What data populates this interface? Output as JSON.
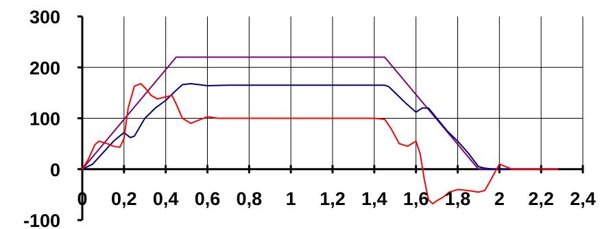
{
  "chart_data": {
    "type": "line",
    "title": "",
    "xlabel": "",
    "ylabel": "",
    "xlim": [
      0,
      2.4
    ],
    "ylim": [
      -100,
      300
    ],
    "grid": true,
    "legend": "none",
    "x_ticks": [
      0,
      0.2,
      0.4,
      0.6,
      0.8,
      1,
      1.2,
      1.4,
      1.6,
      1.8,
      2,
      2.2,
      2.4
    ],
    "x_tick_labels": [
      "0",
      "0,2",
      "0,4",
      "0,6",
      "0,8",
      "1",
      "1,2",
      "1,4",
      "1,6",
      "1,8",
      "2",
      "2,2",
      "2,4"
    ],
    "y_ticks": [
      -100,
      0,
      100,
      200,
      300
    ],
    "y_tick_labels": [
      "-100",
      "0",
      "100",
      "200",
      "300"
    ],
    "series": [
      {
        "color": "#800080",
        "x": [
          0,
          0.45,
          1.45,
          1.9,
          2.28
        ],
        "y": [
          0,
          220,
          220,
          0,
          0
        ]
      },
      {
        "color": "#000080",
        "x": [
          0,
          0.05,
          0.15,
          0.2,
          0.23,
          0.25,
          0.3,
          0.35,
          0.4,
          0.45,
          0.48,
          0.52,
          0.6,
          0.7,
          1.0,
          1.3,
          1.45,
          1.47,
          1.5,
          1.55,
          1.6,
          1.63,
          1.66,
          1.7,
          1.75,
          1.8,
          1.85,
          1.9,
          1.93,
          1.97,
          2.0,
          2.28
        ],
        "y": [
          0,
          10,
          55,
          72,
          62,
          65,
          100,
          120,
          135,
          155,
          166,
          168,
          164,
          165,
          165,
          165,
          165,
          162,
          150,
          130,
          112,
          120,
          120,
          100,
          75,
          55,
          32,
          5,
          2,
          0,
          0,
          0
        ]
      },
      {
        "color": "#FF0000",
        "x": [
          0,
          0.03,
          0.06,
          0.08,
          0.12,
          0.15,
          0.18,
          0.2,
          0.22,
          0.25,
          0.28,
          0.3,
          0.33,
          0.36,
          0.4,
          0.43,
          0.45,
          0.48,
          0.52,
          0.55,
          0.6,
          0.65,
          0.7,
          1.0,
          1.4,
          1.45,
          1.48,
          1.52,
          1.56,
          1.6,
          1.62,
          1.64,
          1.66,
          1.68,
          1.7,
          1.73,
          1.76,
          1.8,
          1.85,
          1.9,
          1.93,
          1.96,
          2.0,
          2.03,
          2.06,
          2.28
        ],
        "y": [
          0,
          20,
          48,
          55,
          50,
          45,
          43,
          60,
          120,
          163,
          168,
          160,
          145,
          138,
          142,
          145,
          128,
          100,
          90,
          95,
          103,
          100,
          100,
          100,
          100,
          98,
          80,
          50,
          45,
          55,
          30,
          -20,
          -60,
          -68,
          -62,
          -55,
          -45,
          -40,
          -42,
          -45,
          -42,
          -20,
          10,
          5,
          0,
          0
        ]
      }
    ]
  }
}
